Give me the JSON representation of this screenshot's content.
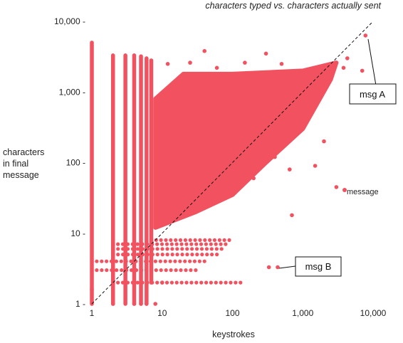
{
  "chart_data": {
    "type": "scatter",
    "title": "characters typed vs. characters actually sent",
    "xlabel": "keystrokes",
    "ylabel": [
      "characters",
      "in final",
      "message"
    ],
    "x_scale": "log",
    "y_scale": "log",
    "xlim": [
      0.8,
      12000
    ],
    "ylim": [
      0.85,
      12000
    ],
    "x_ticks": [
      1,
      10,
      100,
      1000,
      10000
    ],
    "x_tick_labels": [
      "1",
      "10",
      "100",
      "1,000",
      "10,000"
    ],
    "y_ticks": [
      1,
      10,
      100,
      1000,
      10000
    ],
    "y_tick_labels": [
      "1 -",
      "10 -",
      "100 -",
      "1,000 -",
      "10,000 -"
    ],
    "point_color": "#f2525f",
    "reference_line": {
      "style": "dashed",
      "from": [
        1,
        1
      ],
      "to": [
        10000,
        10000
      ]
    },
    "series": [
      {
        "name": "message",
        "dense_region_boundary": [
          [
            8,
            12
          ],
          [
            30,
            20
          ],
          [
            100,
            35
          ],
          [
            300,
            100
          ],
          [
            1000,
            300
          ],
          [
            2500,
            1500
          ],
          [
            3000,
            2600
          ],
          [
            1000,
            2000
          ],
          [
            100,
            1800
          ],
          [
            20,
            1800
          ],
          [
            8,
            800
          ]
        ],
        "vertical_columns": [
          {
            "x": 1,
            "y_min": 1,
            "y_max": 5000
          },
          {
            "x": 2,
            "y_min": 1,
            "y_max": 3300
          },
          {
            "x": 3,
            "y_min": 1,
            "y_max": 3300
          },
          {
            "x": 4,
            "y_min": 1,
            "y_max": 3300
          },
          {
            "x": 5,
            "y_min": 1,
            "y_max": 3200
          },
          {
            "x": 6,
            "y_min": 1,
            "y_max": 3000
          },
          {
            "x": 7,
            "y_min": 2,
            "y_max": 2800
          }
        ],
        "low_rows": [
          {
            "y": 2,
            "x_min": 2,
            "x_max": 130
          },
          {
            "y": 3,
            "x_min": 1,
            "x_max": 30
          },
          {
            "y": 4,
            "x_min": 1,
            "x_max": 40
          },
          {
            "y": 5,
            "x_min": 2,
            "x_max": 60
          },
          {
            "y": 6,
            "x_min": 2,
            "x_max": 70
          },
          {
            "y": 7,
            "x_min": 2,
            "x_max": 80
          },
          {
            "y": 8,
            "x_min": 7,
            "x_max": 90
          }
        ],
        "points": [
          [
            7800,
            6300
          ],
          [
            7000,
            2000
          ],
          [
            3800,
            2200
          ],
          [
            4300,
            3000
          ],
          [
            3000,
            45
          ],
          [
            900,
            300
          ],
          [
            1200,
            550
          ],
          [
            650,
            80
          ],
          [
            400,
            120
          ],
          [
            200,
            60
          ],
          [
            330,
            3.3
          ],
          [
            440,
            3.3
          ],
          [
            700,
            18
          ],
          [
            1500,
            90
          ],
          [
            2000,
            200
          ],
          [
            1700,
            800
          ],
          [
            800,
            1200
          ],
          [
            1100,
            1600
          ],
          [
            500,
            2500
          ],
          [
            300,
            3500
          ],
          [
            150,
            2600
          ],
          [
            60,
            2200
          ],
          [
            40,
            3800
          ],
          [
            25,
            2600
          ],
          [
            12,
            2500
          ],
          [
            2,
            1
          ],
          [
            4,
            1
          ],
          [
            5,
            1
          ],
          [
            8,
            1
          ],
          [
            10,
            2
          ],
          [
            1,
            1.6
          ],
          [
            6,
            1
          ]
        ]
      }
    ],
    "legend": {
      "position": "right",
      "label": "message"
    },
    "annotations": [
      {
        "text": "msg A",
        "point": [
          7800,
          6300
        ]
      },
      {
        "text": "msg B",
        "point": [
          440,
          3.3
        ]
      }
    ],
    "grid": false
  }
}
